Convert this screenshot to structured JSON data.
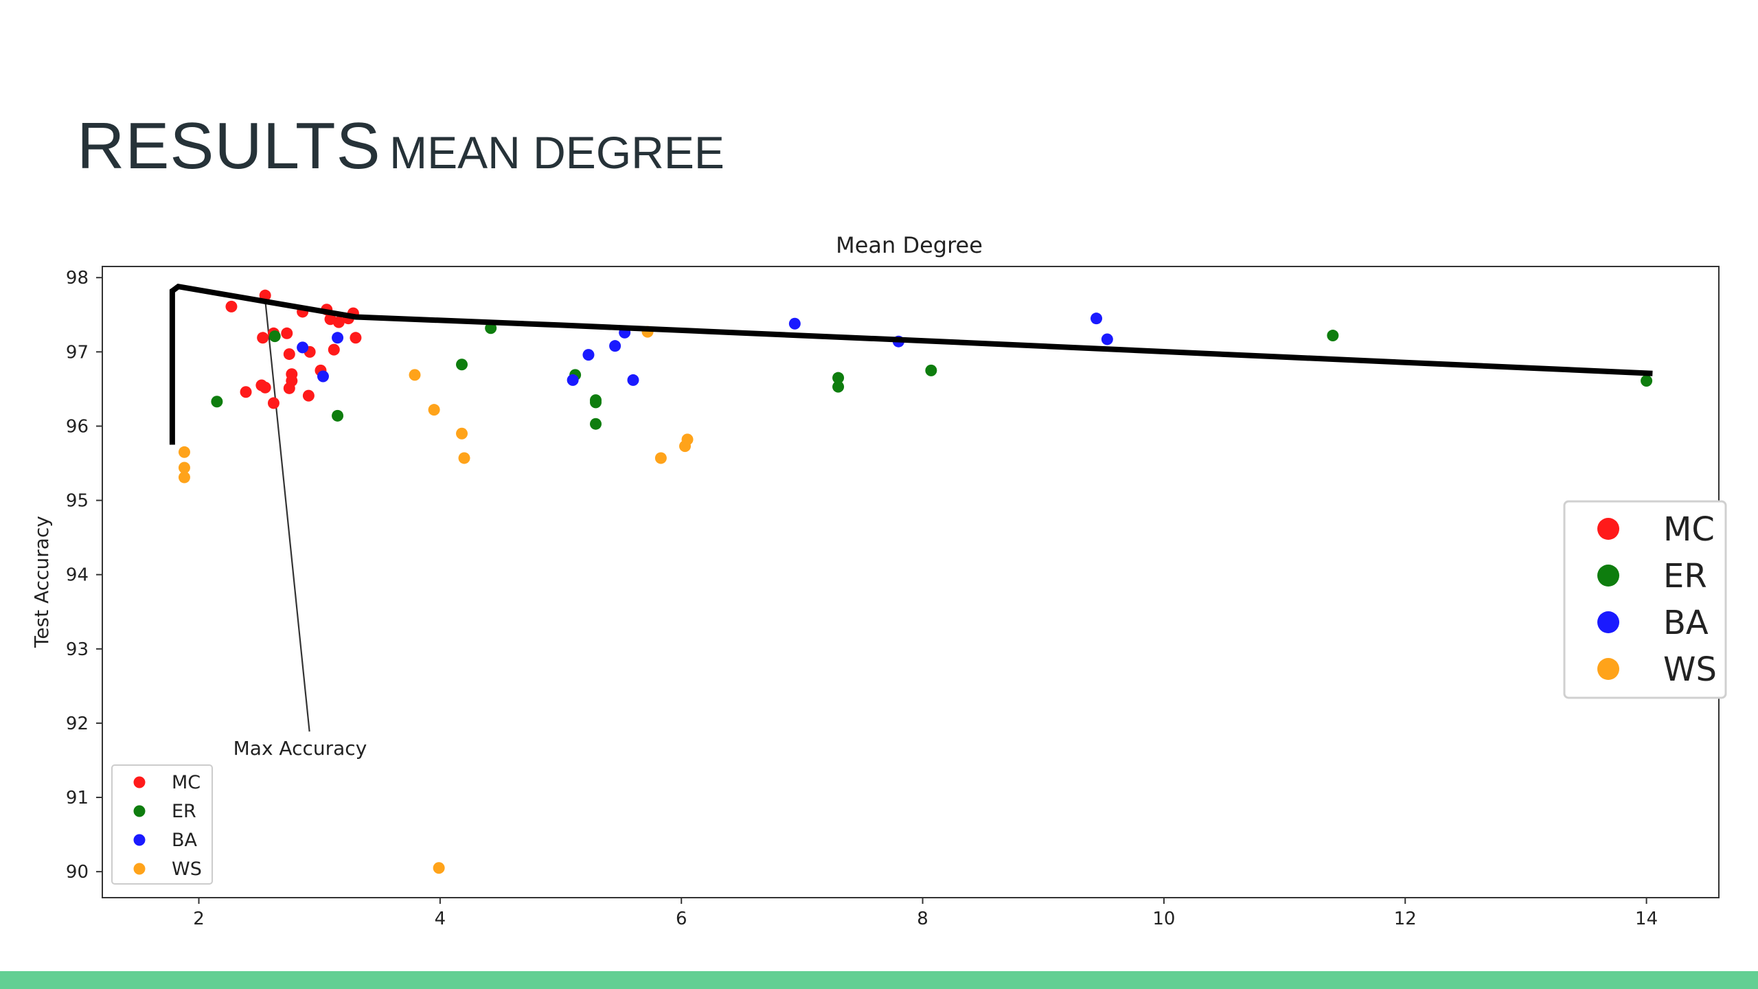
{
  "slide": {
    "title": "RESULTS",
    "subtitle": "MEAN DEGREE"
  },
  "colors": {
    "MC": "#ff1a1a",
    "ER": "#0e7d0e",
    "BA": "#1a1aff",
    "WS": "#ffa31a",
    "accent_bar": "#63cf93",
    "frontier": "#000000"
  },
  "chart_data": {
    "type": "scatter",
    "title": "Mean Degree",
    "xlabel": "",
    "ylabel": "Test Accuracy",
    "xlim": [
      1.2,
      14.6
    ],
    "ylim": [
      89.65,
      98.15
    ],
    "xticks": [
      2,
      4,
      6,
      8,
      10,
      12,
      14
    ],
    "yticks": [
      90,
      91,
      92,
      93,
      94,
      95,
      96,
      97,
      98
    ],
    "grid": false,
    "legend_entries": [
      "MC",
      "ER",
      "BA",
      "WS"
    ],
    "legend_placement": "lower left",
    "large_legend_placement": "right",
    "series": [
      {
        "name": "MC",
        "color": "#ff1a1a",
        "points": [
          [
            2.27,
            97.61
          ],
          [
            2.55,
            97.76
          ],
          [
            2.53,
            97.19
          ],
          [
            2.62,
            97.25
          ],
          [
            2.73,
            97.25
          ],
          [
            2.86,
            97.54
          ],
          [
            2.75,
            96.97
          ],
          [
            2.92,
            97.0
          ],
          [
            3.06,
            97.57
          ],
          [
            3.09,
            97.44
          ],
          [
            3.16,
            97.4
          ],
          [
            3.24,
            97.45
          ],
          [
            3.28,
            97.52
          ],
          [
            3.3,
            97.19
          ],
          [
            3.12,
            97.03
          ],
          [
            3.01,
            96.75
          ],
          [
            2.77,
            96.7
          ],
          [
            2.77,
            96.61
          ],
          [
            2.75,
            96.51
          ],
          [
            2.52,
            96.55
          ],
          [
            2.55,
            96.52
          ],
          [
            2.39,
            96.46
          ],
          [
            2.62,
            96.31
          ],
          [
            2.91,
            96.41
          ]
        ]
      },
      {
        "name": "ER",
        "color": "#0e7d0e",
        "points": [
          [
            2.15,
            96.33
          ],
          [
            2.63,
            97.21
          ],
          [
            3.15,
            96.14
          ],
          [
            4.18,
            96.83
          ],
          [
            4.42,
            97.32
          ],
          [
            5.12,
            96.69
          ],
          [
            5.29,
            96.35
          ],
          [
            5.29,
            96.32
          ],
          [
            5.29,
            96.03
          ],
          [
            7.3,
            96.65
          ],
          [
            7.3,
            96.53
          ],
          [
            8.07,
            96.75
          ],
          [
            11.4,
            97.22
          ],
          [
            14.0,
            96.61
          ]
        ]
      },
      {
        "name": "BA",
        "color": "#1a1aff",
        "points": [
          [
            2.86,
            97.06
          ],
          [
            3.03,
            96.67
          ],
          [
            3.15,
            97.19
          ],
          [
            5.1,
            96.62
          ],
          [
            5.23,
            96.96
          ],
          [
            5.45,
            97.08
          ],
          [
            5.53,
            97.26
          ],
          [
            5.6,
            96.62
          ],
          [
            6.94,
            97.38
          ],
          [
            7.8,
            97.14
          ],
          [
            9.44,
            97.45
          ],
          [
            9.53,
            97.17
          ]
        ]
      },
      {
        "name": "WS",
        "color": "#ffa31a",
        "points": [
          [
            1.88,
            95.65
          ],
          [
            1.88,
            95.44
          ],
          [
            1.88,
            95.31
          ],
          [
            3.79,
            96.69
          ],
          [
            3.95,
            96.22
          ],
          [
            4.18,
            95.9
          ],
          [
            4.2,
            95.57
          ],
          [
            5.72,
            97.27
          ],
          [
            5.83,
            95.57
          ],
          [
            6.03,
            95.73
          ],
          [
            6.05,
            95.82
          ],
          [
            3.99,
            90.05
          ]
        ]
      }
    ],
    "annotations": [
      {
        "text": "Max Accuracy",
        "xy": [
          2.55,
          97.7
        ],
        "xytext": [
          2.9,
          91.85
        ]
      }
    ],
    "frontier_line": [
      [
        1.78,
        95.75
      ],
      [
        1.78,
        97.82
      ],
      [
        1.83,
        97.88
      ],
      [
        3.3,
        97.47
      ],
      [
        5.0,
        97.36
      ],
      [
        8.0,
        97.15
      ],
      [
        11.0,
        96.93
      ],
      [
        14.05,
        96.71
      ]
    ],
    "large_legend": [
      "MC",
      "ER",
      "BA",
      "WS"
    ]
  }
}
